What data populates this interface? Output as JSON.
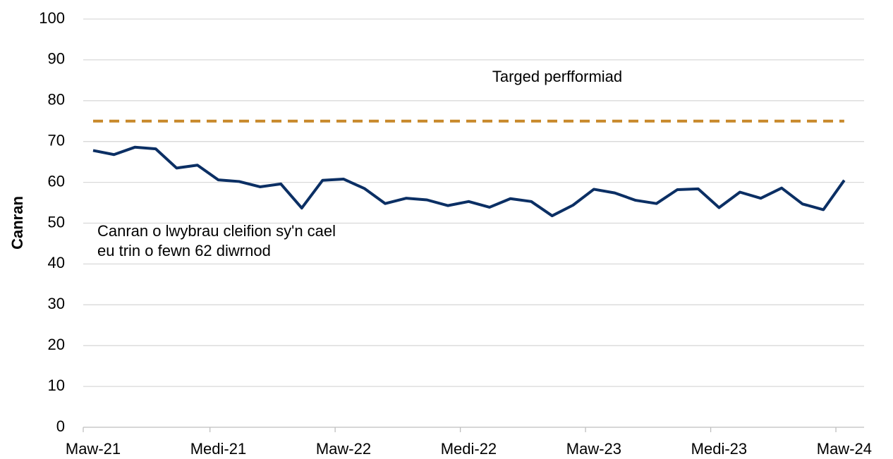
{
  "chart_data": {
    "type": "line",
    "y_label": "Canran",
    "categories": [
      "Maw-21",
      null,
      null,
      null,
      null,
      null,
      "Medi-21",
      null,
      null,
      null,
      null,
      null,
      "Maw-22",
      null,
      null,
      null,
      null,
      null,
      "Medi-22",
      null,
      null,
      null,
      null,
      null,
      "Maw-23",
      null,
      null,
      null,
      null,
      null,
      "Medi-23",
      null,
      null,
      null,
      null,
      null,
      "Maw-24"
    ],
    "series": [
      {
        "name": [
          "Canran o lwybrau cleifion sy'n cael",
          "eu trin o fewn 62 diwrnod"
        ],
        "color": "#0b2f64",
        "dashed": false,
        "values": [
          67.8,
          66.8,
          68.6,
          68.2,
          63.5,
          64.2,
          60.6,
          60.2,
          58.9,
          59.6,
          53.7,
          60.5,
          60.8,
          58.5,
          54.8,
          56.1,
          55.7,
          54.3,
          55.3,
          53.9,
          56.0,
          55.3,
          51.8,
          54.4,
          58.3,
          57.4,
          55.6,
          54.8,
          58.2,
          58.4,
          53.8,
          57.6,
          56.1,
          58.6,
          54.7,
          53.3,
          60.5
        ]
      },
      {
        "name": "Targed perfformiad",
        "color": "#c8892b",
        "dashed": true,
        "values": [
          75,
          75,
          75,
          75,
          75,
          75,
          75,
          75,
          75,
          75,
          75,
          75,
          75,
          75,
          75,
          75,
          75,
          75,
          75,
          75,
          75,
          75,
          75,
          75,
          75,
          75,
          75,
          75,
          75,
          75,
          75,
          75,
          75,
          75,
          75,
          75,
          75
        ]
      }
    ],
    "ylim": [
      0,
      100
    ],
    "yticks": [
      0,
      10,
      20,
      30,
      40,
      50,
      60,
      70,
      80,
      90,
      100
    ],
    "grid": true
  }
}
